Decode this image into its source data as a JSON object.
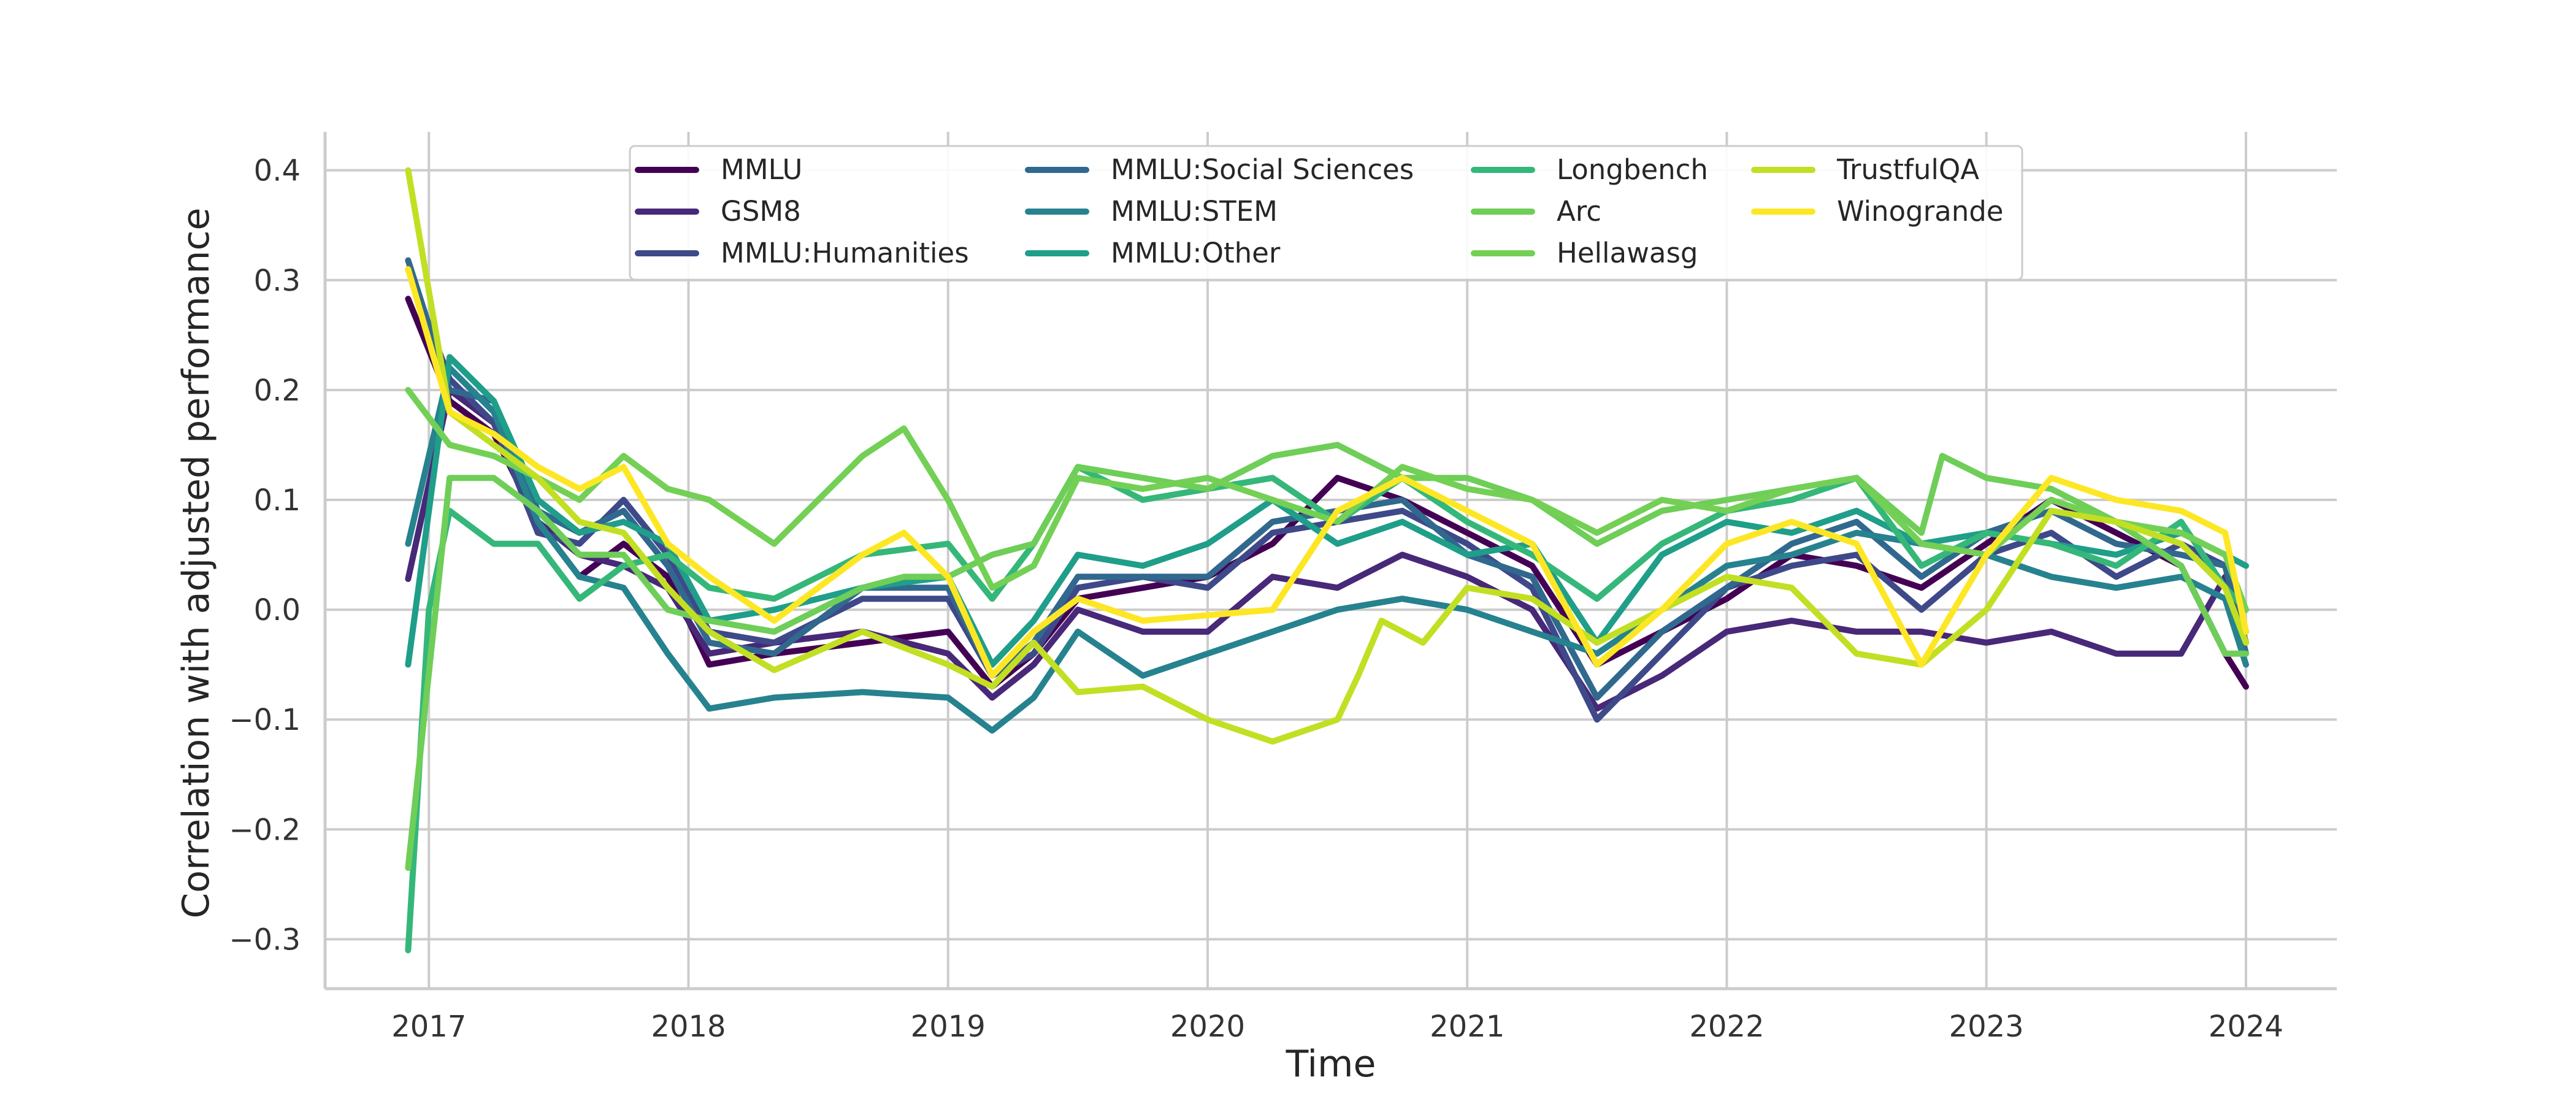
{
  "chart_data": {
    "type": "line",
    "title": "",
    "xlabel": "Time",
    "ylabel": "Correlation with adjusted performance",
    "xlim": [
      2016.6,
      2024.35
    ],
    "ylim": [
      -0.345,
      0.435
    ],
    "xticks": [
      2017,
      2018,
      2019,
      2020,
      2021,
      2022,
      2023,
      2024
    ],
    "xtick_labels": [
      "2017",
      "2018",
      "2019",
      "2020",
      "2021",
      "2022",
      "2023",
      "2024"
    ],
    "yticks": [
      0.4,
      0.3,
      0.2,
      0.1,
      0.0,
      -0.1,
      -0.2,
      -0.3
    ],
    "ytick_labels": [
      "0.4",
      "0.3",
      "0.2",
      "0.1",
      "0.0",
      "−0.1",
      "−0.2",
      "−0.3"
    ],
    "grid": true,
    "legend": {
      "placement": "top-center",
      "columns": 4
    },
    "series": [
      {
        "name": "MMLU",
        "color": "#440154",
        "x": [
          2016.92,
          2017.08,
          2017.25,
          2017.42,
          2017.58,
          2017.75,
          2017.92,
          2018.08,
          2018.33,
          2018.67,
          2019.0,
          2019.17,
          2019.33,
          2019.5,
          2019.75,
          2020.0,
          2020.25,
          2020.5,
          2020.75,
          2021.0,
          2021.25,
          2021.5,
          2021.75,
          2022.0,
          2022.25,
          2022.5,
          2022.75,
          2023.0,
          2023.25,
          2023.5,
          2023.75,
          2023.92,
          2024.0
        ],
        "y": [
          0.283,
          0.19,
          0.16,
          0.08,
          0.03,
          0.06,
          0.03,
          -0.05,
          -0.04,
          -0.03,
          -0.02,
          -0.07,
          -0.04,
          0.01,
          0.02,
          0.03,
          0.06,
          0.12,
          0.1,
          0.07,
          0.04,
          -0.05,
          -0.02,
          0.01,
          0.05,
          0.04,
          0.02,
          0.06,
          0.1,
          0.07,
          0.04,
          -0.04,
          -0.07
        ]
      },
      {
        "name": "GSM8",
        "color": "#482878",
        "x": [
          2016.92,
          2017.08,
          2017.25,
          2017.42,
          2017.58,
          2017.75,
          2017.92,
          2018.08,
          2018.33,
          2018.67,
          2019.0,
          2019.17,
          2019.33,
          2019.5,
          2019.75,
          2020.0,
          2020.25,
          2020.5,
          2020.75,
          2021.0,
          2021.25,
          2021.5,
          2021.75,
          2022.0,
          2022.25,
          2022.5,
          2022.75,
          2023.0,
          2023.25,
          2023.5,
          2023.75,
          2023.92,
          2024.0
        ],
        "y": [
          0.028,
          0.2,
          0.17,
          0.08,
          0.05,
          0.04,
          0.02,
          -0.04,
          -0.03,
          -0.02,
          -0.04,
          -0.08,
          -0.05,
          0.0,
          -0.02,
          -0.02,
          0.03,
          0.02,
          0.05,
          0.03,
          0.0,
          -0.09,
          -0.06,
          -0.02,
          -0.01,
          -0.02,
          -0.02,
          -0.03,
          -0.02,
          -0.04,
          -0.04,
          0.03,
          -0.02
        ]
      },
      {
        "name": "MMLU:Humanities",
        "color": "#3e4989",
        "x": [
          2016.92,
          2017.08,
          2017.25,
          2017.42,
          2017.58,
          2017.75,
          2017.92,
          2018.08,
          2018.33,
          2018.67,
          2019.0,
          2019.17,
          2019.33,
          2019.5,
          2019.75,
          2020.0,
          2020.25,
          2020.5,
          2020.75,
          2021.0,
          2021.25,
          2021.5,
          2021.75,
          2022.0,
          2022.25,
          2022.5,
          2022.75,
          2023.0,
          2023.25,
          2023.5,
          2023.75,
          2023.92,
          2024.0
        ],
        "y": [
          0.31,
          0.21,
          0.17,
          0.07,
          0.06,
          0.1,
          0.05,
          -0.02,
          -0.03,
          0.01,
          0.01,
          -0.06,
          -0.04,
          0.02,
          0.03,
          0.02,
          0.07,
          0.08,
          0.09,
          0.06,
          0.02,
          -0.1,
          -0.04,
          0.02,
          0.04,
          0.05,
          0.0,
          0.05,
          0.07,
          0.03,
          0.06,
          0.04,
          -0.03
        ]
      },
      {
        "name": "MMLU:Social Sciences",
        "color": "#31688e",
        "x": [
          2016.92,
          2017.08,
          2017.25,
          2017.42,
          2017.58,
          2017.75,
          2017.92,
          2018.08,
          2018.33,
          2018.67,
          2019.0,
          2019.17,
          2019.33,
          2019.5,
          2019.75,
          2020.0,
          2020.25,
          2020.5,
          2020.75,
          2021.0,
          2021.25,
          2021.5,
          2021.75,
          2022.0,
          2022.25,
          2022.5,
          2022.75,
          2023.0,
          2023.25,
          2023.5,
          2023.75,
          2023.92,
          2024.0
        ],
        "y": [
          0.318,
          0.2,
          0.19,
          0.09,
          0.07,
          0.09,
          0.04,
          -0.03,
          -0.04,
          0.02,
          0.02,
          -0.06,
          -0.03,
          0.03,
          0.03,
          0.03,
          0.08,
          0.09,
          0.1,
          0.05,
          0.03,
          -0.08,
          -0.02,
          0.02,
          0.06,
          0.08,
          0.03,
          0.07,
          0.09,
          0.06,
          0.05,
          0.04,
          -0.04
        ]
      },
      {
        "name": "MMLU:STEM",
        "color": "#26828e",
        "x": [
          2016.92,
          2017.08,
          2017.25,
          2017.42,
          2017.58,
          2017.75,
          2017.92,
          2018.08,
          2018.33,
          2018.67,
          2019.0,
          2019.17,
          2019.33,
          2019.5,
          2019.75,
          2020.0,
          2020.25,
          2020.5,
          2020.75,
          2021.0,
          2021.25,
          2021.5,
          2021.75,
          2022.0,
          2022.25,
          2022.5,
          2022.75,
          2023.0,
          2023.25,
          2023.5,
          2023.75,
          2023.92,
          2024.0
        ],
        "y": [
          0.06,
          0.22,
          0.18,
          0.08,
          0.03,
          0.02,
          -0.04,
          -0.09,
          -0.08,
          -0.075,
          -0.08,
          -0.11,
          -0.08,
          -0.02,
          -0.06,
          -0.04,
          -0.02,
          0.0,
          0.01,
          0.0,
          -0.02,
          -0.04,
          0.0,
          0.04,
          0.05,
          0.07,
          0.06,
          0.05,
          0.03,
          0.02,
          0.03,
          0.01,
          -0.05
        ]
      },
      {
        "name": "MMLU:Other",
        "color": "#1f9e89",
        "x": [
          2016.92,
          2017.08,
          2017.25,
          2017.42,
          2017.58,
          2017.75,
          2017.92,
          2018.08,
          2018.33,
          2018.67,
          2019.0,
          2019.17,
          2019.33,
          2019.5,
          2019.75,
          2020.0,
          2020.25,
          2020.5,
          2020.75,
          2021.0,
          2021.25,
          2021.5,
          2021.75,
          2022.0,
          2022.25,
          2022.5,
          2022.75,
          2023.0,
          2023.25,
          2023.5,
          2023.75,
          2023.92,
          2024.0
        ],
        "y": [
          -0.05,
          0.23,
          0.19,
          0.1,
          0.07,
          0.08,
          0.06,
          -0.01,
          0.0,
          0.02,
          0.03,
          -0.05,
          -0.01,
          0.05,
          0.04,
          0.06,
          0.1,
          0.06,
          0.08,
          0.05,
          0.06,
          -0.03,
          0.05,
          0.08,
          0.07,
          0.09,
          0.06,
          0.07,
          0.06,
          0.05,
          0.07,
          0.05,
          0.04
        ]
      },
      {
        "name": "Longbench",
        "color": "#35b779",
        "x": [
          2016.92,
          2017.0,
          2017.08,
          2017.25,
          2017.42,
          2017.58,
          2017.75,
          2017.92,
          2018.08,
          2018.33,
          2018.67,
          2019.0,
          2019.17,
          2019.33,
          2019.5,
          2019.75,
          2020.0,
          2020.25,
          2020.5,
          2020.75,
          2021.0,
          2021.25,
          2021.5,
          2021.75,
          2022.0,
          2022.25,
          2022.5,
          2022.75,
          2023.0,
          2023.25,
          2023.5,
          2023.75,
          2023.92,
          2024.0
        ],
        "y": [
          -0.31,
          0.0,
          0.09,
          0.06,
          0.06,
          0.01,
          0.04,
          0.05,
          0.02,
          0.01,
          0.05,
          0.06,
          0.01,
          0.06,
          0.13,
          0.1,
          0.11,
          0.12,
          0.08,
          0.12,
          0.08,
          0.05,
          0.01,
          0.06,
          0.09,
          0.1,
          0.12,
          0.04,
          0.07,
          0.06,
          0.04,
          0.08,
          0.02,
          0.0
        ]
      },
      {
        "name": "Arc",
        "color": "#6ece58",
        "x": [
          2016.92,
          2017.08,
          2017.25,
          2017.42,
          2017.58,
          2017.75,
          2017.92,
          2018.08,
          2018.33,
          2018.67,
          2018.83,
          2019.0,
          2019.17,
          2019.33,
          2019.5,
          2019.75,
          2020.0,
          2020.25,
          2020.5,
          2020.75,
          2021.0,
          2021.25,
          2021.5,
          2021.75,
          2022.0,
          2022.25,
          2022.5,
          2022.75,
          2022.83,
          2023.0,
          2023.25,
          2023.5,
          2023.75,
          2023.92,
          2024.0
        ],
        "y": [
          -0.235,
          0.12,
          0.12,
          0.09,
          0.05,
          0.05,
          0.0,
          -0.01,
          -0.02,
          0.02,
          0.03,
          0.03,
          0.05,
          0.06,
          0.13,
          0.12,
          0.11,
          0.14,
          0.15,
          0.12,
          0.12,
          0.1,
          0.06,
          0.09,
          0.1,
          0.11,
          0.12,
          0.07,
          0.14,
          0.12,
          0.11,
          0.08,
          0.04,
          -0.04,
          -0.04
        ]
      },
      {
        "name": "Hellawasg",
        "color": "#73d055",
        "x": [
          2016.92,
          2017.08,
          2017.25,
          2017.42,
          2017.58,
          2017.75,
          2017.92,
          2018.08,
          2018.33,
          2018.67,
          2018.83,
          2019.0,
          2019.17,
          2019.33,
          2019.5,
          2019.75,
          2020.0,
          2020.25,
          2020.5,
          2020.75,
          2021.0,
          2021.25,
          2021.5,
          2021.75,
          2022.0,
          2022.25,
          2022.5,
          2022.75,
          2023.0,
          2023.25,
          2023.5,
          2023.75,
          2023.92,
          2024.0
        ],
        "y": [
          0.2,
          0.15,
          0.14,
          0.12,
          0.1,
          0.14,
          0.11,
          0.1,
          0.06,
          0.14,
          0.165,
          0.1,
          0.02,
          0.04,
          0.12,
          0.11,
          0.12,
          0.1,
          0.08,
          0.13,
          0.11,
          0.1,
          0.07,
          0.1,
          0.09,
          0.11,
          0.12,
          0.06,
          0.05,
          0.1,
          0.08,
          0.07,
          0.05,
          0.0
        ]
      },
      {
        "name": "TrustfulQA",
        "color": "#c2df23",
        "x": [
          2016.92,
          2017.08,
          2017.25,
          2017.42,
          2017.58,
          2017.75,
          2017.92,
          2018.08,
          2018.33,
          2018.67,
          2019.0,
          2019.17,
          2019.33,
          2019.5,
          2019.75,
          2020.0,
          2020.25,
          2020.5,
          2020.58,
          2020.67,
          2020.83,
          2021.0,
          2021.25,
          2021.5,
          2021.75,
          2022.0,
          2022.25,
          2022.5,
          2022.75,
          2023.0,
          2023.25,
          2023.5,
          2023.75,
          2023.92,
          2024.0
        ],
        "y": [
          0.4,
          0.18,
          0.15,
          0.12,
          0.08,
          0.07,
          0.02,
          -0.02,
          -0.055,
          -0.02,
          -0.05,
          -0.07,
          -0.03,
          -0.075,
          -0.07,
          -0.1,
          -0.12,
          -0.1,
          -0.06,
          -0.01,
          -0.03,
          0.02,
          0.01,
          -0.03,
          0.0,
          0.03,
          0.02,
          -0.04,
          -0.05,
          0.0,
          0.09,
          0.08,
          0.06,
          0.02,
          -0.03
        ]
      },
      {
        "name": "Winogrande",
        "color": "#fde725",
        "x": [
          2016.92,
          2017.08,
          2017.25,
          2017.42,
          2017.58,
          2017.75,
          2017.92,
          2018.08,
          2018.33,
          2018.67,
          2018.83,
          2019.0,
          2019.17,
          2019.33,
          2019.5,
          2019.75,
          2020.0,
          2020.25,
          2020.5,
          2020.75,
          2021.0,
          2021.25,
          2021.5,
          2021.75,
          2022.0,
          2022.25,
          2022.5,
          2022.75,
          2023.0,
          2023.25,
          2023.5,
          2023.75,
          2023.92,
          2024.0
        ],
        "y": [
          0.31,
          0.18,
          0.16,
          0.13,
          0.11,
          0.13,
          0.06,
          0.03,
          -0.01,
          0.05,
          0.07,
          0.03,
          -0.06,
          -0.02,
          0.01,
          -0.01,
          -0.005,
          0.0,
          0.09,
          0.12,
          0.09,
          0.06,
          -0.05,
          0.0,
          0.06,
          0.08,
          0.06,
          -0.05,
          0.05,
          0.12,
          0.1,
          0.09,
          0.07,
          -0.02
        ]
      }
    ]
  }
}
